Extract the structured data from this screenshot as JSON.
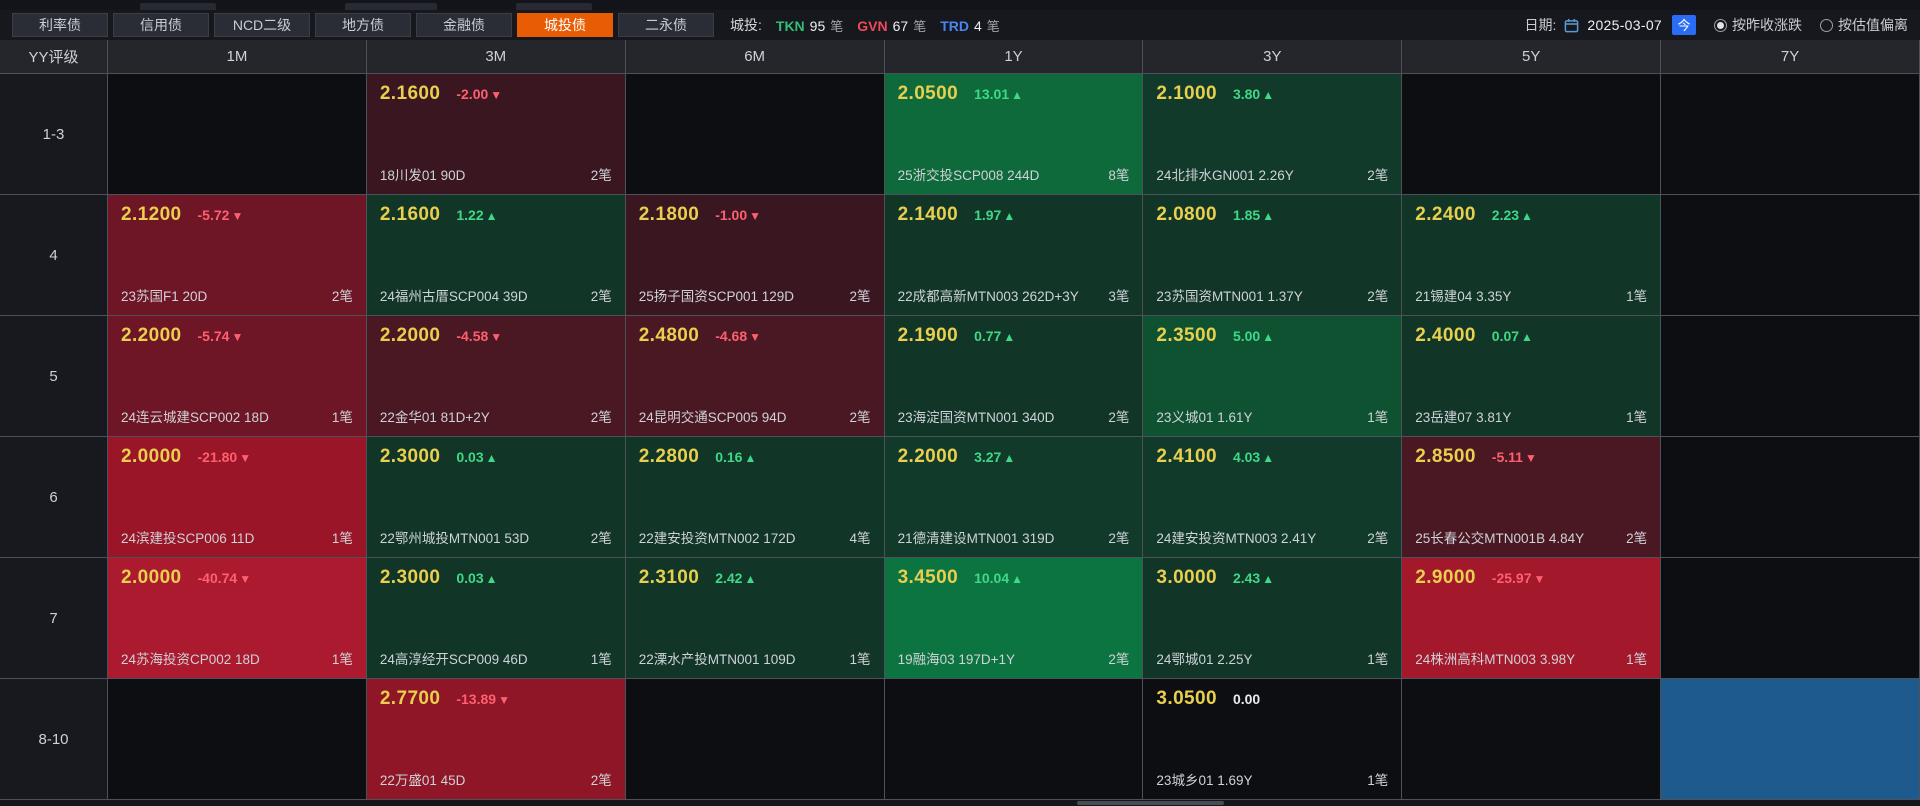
{
  "tabs": [
    {
      "label": "利率债",
      "active": false
    },
    {
      "label": "信用债",
      "active": false
    },
    {
      "label": "NCD二级",
      "active": false
    },
    {
      "label": "地方债",
      "active": false
    },
    {
      "label": "金融债",
      "active": false
    },
    {
      "label": "城投债",
      "active": true
    },
    {
      "label": "二永债",
      "active": false
    }
  ],
  "stats": {
    "prefix": "城投:",
    "items": [
      {
        "label": "TKN",
        "count": "95",
        "unit": "笔",
        "color": "#2fbf77"
      },
      {
        "label": "GVN",
        "count": "67",
        "unit": "笔",
        "color": "#f04a5a"
      },
      {
        "label": "TRD",
        "count": "4",
        "unit": "笔",
        "color": "#4a86f0"
      }
    ]
  },
  "toolbar": {
    "date_label": "日期:",
    "date_value": "2025-03-07",
    "today_button": "今",
    "radios": [
      {
        "label": "按昨收涨跌",
        "selected": true
      },
      {
        "label": "按估值偏离",
        "selected": false
      }
    ]
  },
  "colors": {
    "accent_active_tab": "#e85d04",
    "yield_text": "#e9cf4e",
    "up_text": "#3ed987",
    "down_text": "#ff5f6f",
    "highlight_cell": "#1e5a8e"
  },
  "grid": {
    "corner_header": "YY评级",
    "column_headers": [
      "1M",
      "3M",
      "6M",
      "1Y",
      "3Y",
      "5Y",
      "7Y"
    ],
    "rows": [
      {
        "rating": "1-3",
        "cells": [
          null,
          {
            "yield": "2.1600",
            "change": "-2.00",
            "arrow": "▼",
            "dir": "down",
            "bond": "18川发01 90D",
            "count": "2笔",
            "bg": "#3a1621"
          },
          null,
          {
            "yield": "2.0500",
            "change": "13.01",
            "arrow": "▲",
            "dir": "up",
            "bond": "25浙交投SCP008 244D",
            "count": "8笔",
            "bg": "#0e6a3b"
          },
          {
            "yield": "2.1000",
            "change": "3.80",
            "arrow": "▲",
            "dir": "up",
            "bond": "24北排水GN001 2.26Y",
            "count": "2笔",
            "bg": "#123a2b"
          },
          null,
          null
        ]
      },
      {
        "rating": "4",
        "cells": [
          {
            "yield": "2.1200",
            "change": "-5.72",
            "arrow": "▼",
            "dir": "down",
            "bond": "23苏国F1 20D",
            "count": "2笔",
            "bg": "#6e1626"
          },
          {
            "yield": "2.1600",
            "change": "1.22",
            "arrow": "▲",
            "dir": "up",
            "bond": "24福州古厝SCP004 39D",
            "count": "2笔",
            "bg": "#113527"
          },
          {
            "yield": "2.1800",
            "change": "-1.00",
            "arrow": "▼",
            "dir": "down",
            "bond": "25扬子国资SCP001 129D",
            "count": "2笔",
            "bg": "#3a1621"
          },
          {
            "yield": "2.1400",
            "change": "1.97",
            "arrow": "▲",
            "dir": "up",
            "bond": "22成都高新MTN003 262D+3Y",
            "count": "3笔",
            "bg": "#113527"
          },
          {
            "yield": "2.0800",
            "change": "1.85",
            "arrow": "▲",
            "dir": "up",
            "bond": "23苏国资MTN001 1.37Y",
            "count": "2笔",
            "bg": "#113527"
          },
          {
            "yield": "2.2400",
            "change": "2.23",
            "arrow": "▲",
            "dir": "up",
            "bond": "21锡建04 3.35Y",
            "count": "1笔",
            "bg": "#113527"
          },
          null
        ]
      },
      {
        "rating": "5",
        "cells": [
          {
            "yield": "2.2000",
            "change": "-5.74",
            "arrow": "▼",
            "dir": "down",
            "bond": "24连云城建SCP002 18D",
            "count": "1笔",
            "bg": "#6e1626"
          },
          {
            "yield": "2.2000",
            "change": "-4.58",
            "arrow": "▼",
            "dir": "down",
            "bond": "22金华01 81D+2Y",
            "count": "2笔",
            "bg": "#4a1823"
          },
          {
            "yield": "2.4800",
            "change": "-4.68",
            "arrow": "▼",
            "dir": "down",
            "bond": "24昆明交通SCP005 94D",
            "count": "2笔",
            "bg": "#4a1823"
          },
          {
            "yield": "2.1900",
            "change": "0.77",
            "arrow": "▲",
            "dir": "up",
            "bond": "23海淀国资MTN001 340D",
            "count": "2笔",
            "bg": "#113527"
          },
          {
            "yield": "2.3500",
            "change": "5.00",
            "arrow": "▲",
            "dir": "up",
            "bond": "23义城01 1.61Y",
            "count": "1笔",
            "bg": "#0f5232"
          },
          {
            "yield": "2.4000",
            "change": "0.07",
            "arrow": "▲",
            "dir": "up",
            "bond": "23岳建07 3.81Y",
            "count": "1笔",
            "bg": "#113527"
          },
          null
        ]
      },
      {
        "rating": "6",
        "cells": [
          {
            "yield": "2.0000",
            "change": "-21.80",
            "arrow": "▼",
            "dir": "down",
            "bond": "24滨建投SCP006 11D",
            "count": "1笔",
            "bg": "#9a1527"
          },
          {
            "yield": "2.3000",
            "change": "0.03",
            "arrow": "▲",
            "dir": "up",
            "bond": "22鄂州城投MTN001 53D",
            "count": "2笔",
            "bg": "#113527"
          },
          {
            "yield": "2.2800",
            "change": "0.16",
            "arrow": "▲",
            "dir": "up",
            "bond": "22建安投资MTN002 172D",
            "count": "4笔",
            "bg": "#113527"
          },
          {
            "yield": "2.2000",
            "change": "3.27",
            "arrow": "▲",
            "dir": "up",
            "bond": "21德清建设MTN001 319D",
            "count": "2笔",
            "bg": "#123a2b"
          },
          {
            "yield": "2.4100",
            "change": "4.03",
            "arrow": "▲",
            "dir": "up",
            "bond": "24建安投资MTN003 2.41Y",
            "count": "2笔",
            "bg": "#123a2b"
          },
          {
            "yield": "2.8500",
            "change": "-5.11",
            "arrow": "▼",
            "dir": "down",
            "bond": "25长春公交MTN001B 4.84Y",
            "count": "2笔",
            "bg": "#4a1823"
          },
          null
        ]
      },
      {
        "rating": "7",
        "cells": [
          {
            "yield": "2.0000",
            "change": "-40.74",
            "arrow": "▼",
            "dir": "down",
            "bond": "24苏海投资CP002 18D",
            "count": "1笔",
            "bg": "#ab1a2e"
          },
          {
            "yield": "2.3000",
            "change": "0.03",
            "arrow": "▲",
            "dir": "up",
            "bond": "24高淳经开SCP009 46D",
            "count": "1笔",
            "bg": "#113527"
          },
          {
            "yield": "2.3100",
            "change": "2.42",
            "arrow": "▲",
            "dir": "up",
            "bond": "22溧水产投MTN001 109D",
            "count": "1笔",
            "bg": "#113527"
          },
          {
            "yield": "3.4500",
            "change": "10.04",
            "arrow": "▲",
            "dir": "up",
            "bond": "19融海03 197D+1Y",
            "count": "2笔",
            "bg": "#0c7440"
          },
          {
            "yield": "3.0000",
            "change": "2.43",
            "arrow": "▲",
            "dir": "up",
            "bond": "24鄂城01 2.25Y",
            "count": "1笔",
            "bg": "#113527"
          },
          {
            "yield": "2.9000",
            "change": "-25.97",
            "arrow": "▼",
            "dir": "down",
            "bond": "24株洲高科MTN003 3.98Y",
            "count": "1笔",
            "bg": "#a3182b"
          },
          null
        ]
      },
      {
        "rating": "8-10",
        "cells": [
          null,
          {
            "yield": "2.7700",
            "change": "-13.89",
            "arrow": "▼",
            "dir": "down",
            "bond": "22万盛01 45D",
            "count": "2笔",
            "bg": "#8e1626"
          },
          null,
          null,
          {
            "yield": "3.0500",
            "change": "0.00",
            "arrow": "",
            "dir": "flat",
            "bond": "23城乡01 1.69Y",
            "count": "1笔",
            "bg": "#0c0e12"
          },
          null,
          {
            "type": "highlight",
            "bg": "#1e5a8e"
          }
        ]
      }
    ]
  }
}
